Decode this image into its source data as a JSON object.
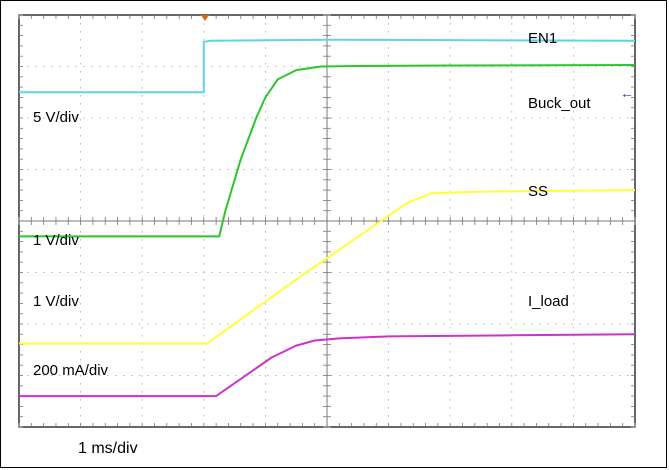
{
  "chart_data": {
    "type": "line",
    "title": "",
    "x_scale": "1 ms/div",
    "grid": true,
    "background": "#000000",
    "x_divisions": 10,
    "y_divisions": 8,
    "x_range_div": [
      0,
      10
    ],
    "y_range_div": [
      0,
      8
    ],
    "annotations": {
      "scale_en1": "5 V/div",
      "scale_buck": "1 V/div",
      "scale_ss": "1 V/div",
      "scale_iload": "200 mA/div"
    },
    "series": [
      {
        "name": "EN1",
        "color": "#5fd3e6",
        "x": [
          0,
          3.0,
          3.0,
          3.1,
          5.0,
          10.0
        ],
        "y": [
          6.5,
          6.5,
          7.48,
          7.5,
          7.52,
          7.5
        ]
      },
      {
        "name": "Buck_out",
        "color": "#2fc42f",
        "x": [
          0,
          3.25,
          3.35,
          3.6,
          3.85,
          4.0,
          4.2,
          4.5,
          4.9,
          5.5,
          7.0,
          10.0
        ],
        "y": [
          3.7,
          3.7,
          4.2,
          5.2,
          6.0,
          6.4,
          6.75,
          6.93,
          7.0,
          7.01,
          7.02,
          7.03
        ]
      },
      {
        "name": "SS",
        "color": "#ffff33",
        "x": [
          0,
          3.05,
          4.6,
          6.3,
          6.7,
          7.5,
          10.0
        ],
        "y": [
          1.62,
          1.62,
          2.95,
          4.35,
          4.54,
          4.57,
          4.6
        ]
      },
      {
        "name": "I_load",
        "color": "#cc33cc",
        "x": [
          0,
          3.2,
          3.5,
          3.8,
          4.1,
          4.5,
          4.8,
          5.2,
          6.0,
          8.0,
          10.0
        ],
        "y": [
          0.6,
          0.6,
          0.85,
          1.1,
          1.35,
          1.58,
          1.68,
          1.72,
          1.76,
          1.78,
          1.8
        ]
      }
    ],
    "series_labels": {
      "en1": "EN1",
      "buck_out": "Buck_out",
      "ss": "SS",
      "i_load": "I_load"
    },
    "marker_symbol": "←",
    "trigger_marker_color": "#e06010"
  }
}
